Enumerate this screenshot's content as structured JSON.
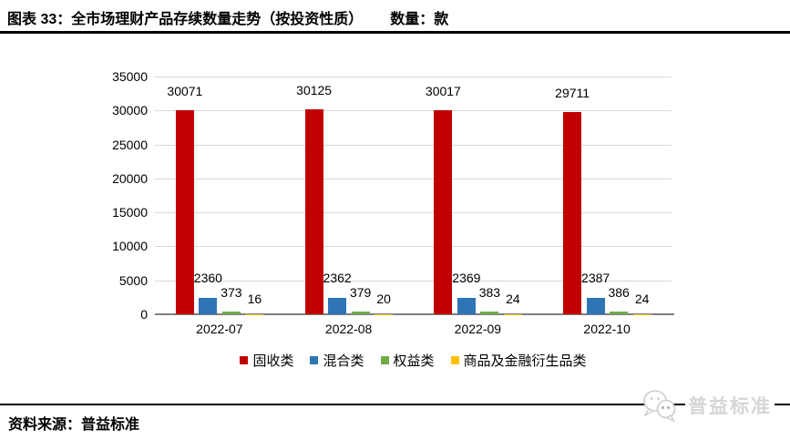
{
  "header": {
    "title": "图表 33：全市场理财产品存续数量走势（按投资性质）",
    "unit_label": "数量：款"
  },
  "chart_data": {
    "type": "bar",
    "title": "全市场理财产品存续数量走势（按投资性质）",
    "unit": "款",
    "categories": [
      "2022-07",
      "2022-08",
      "2022-09",
      "2022-10"
    ],
    "series": [
      {
        "name": "固收类",
        "color": "#c00000",
        "values": [
          30071,
          30125,
          30017,
          29711
        ]
      },
      {
        "name": "混合类",
        "color": "#2e75b6",
        "values": [
          2360,
          2362,
          2369,
          2387
        ]
      },
      {
        "name": "权益类",
        "color": "#70ad47",
        "values": [
          373,
          379,
          383,
          386
        ]
      },
      {
        "name": "商品及金融衍生品类",
        "color": "#ffc000",
        "values": [
          16,
          20,
          24,
          24
        ]
      }
    ],
    "ylim": [
      0,
      35000
    ],
    "yticks": [
      0,
      5000,
      10000,
      15000,
      20000,
      25000,
      30000,
      35000
    ],
    "grid": true,
    "grid_color": "#d9d9d9",
    "axis_color": "#7f7f7f",
    "legend_position": "bottom"
  },
  "footer": {
    "source": "资料来源：普益标准",
    "logo_text": "普益标准"
  }
}
